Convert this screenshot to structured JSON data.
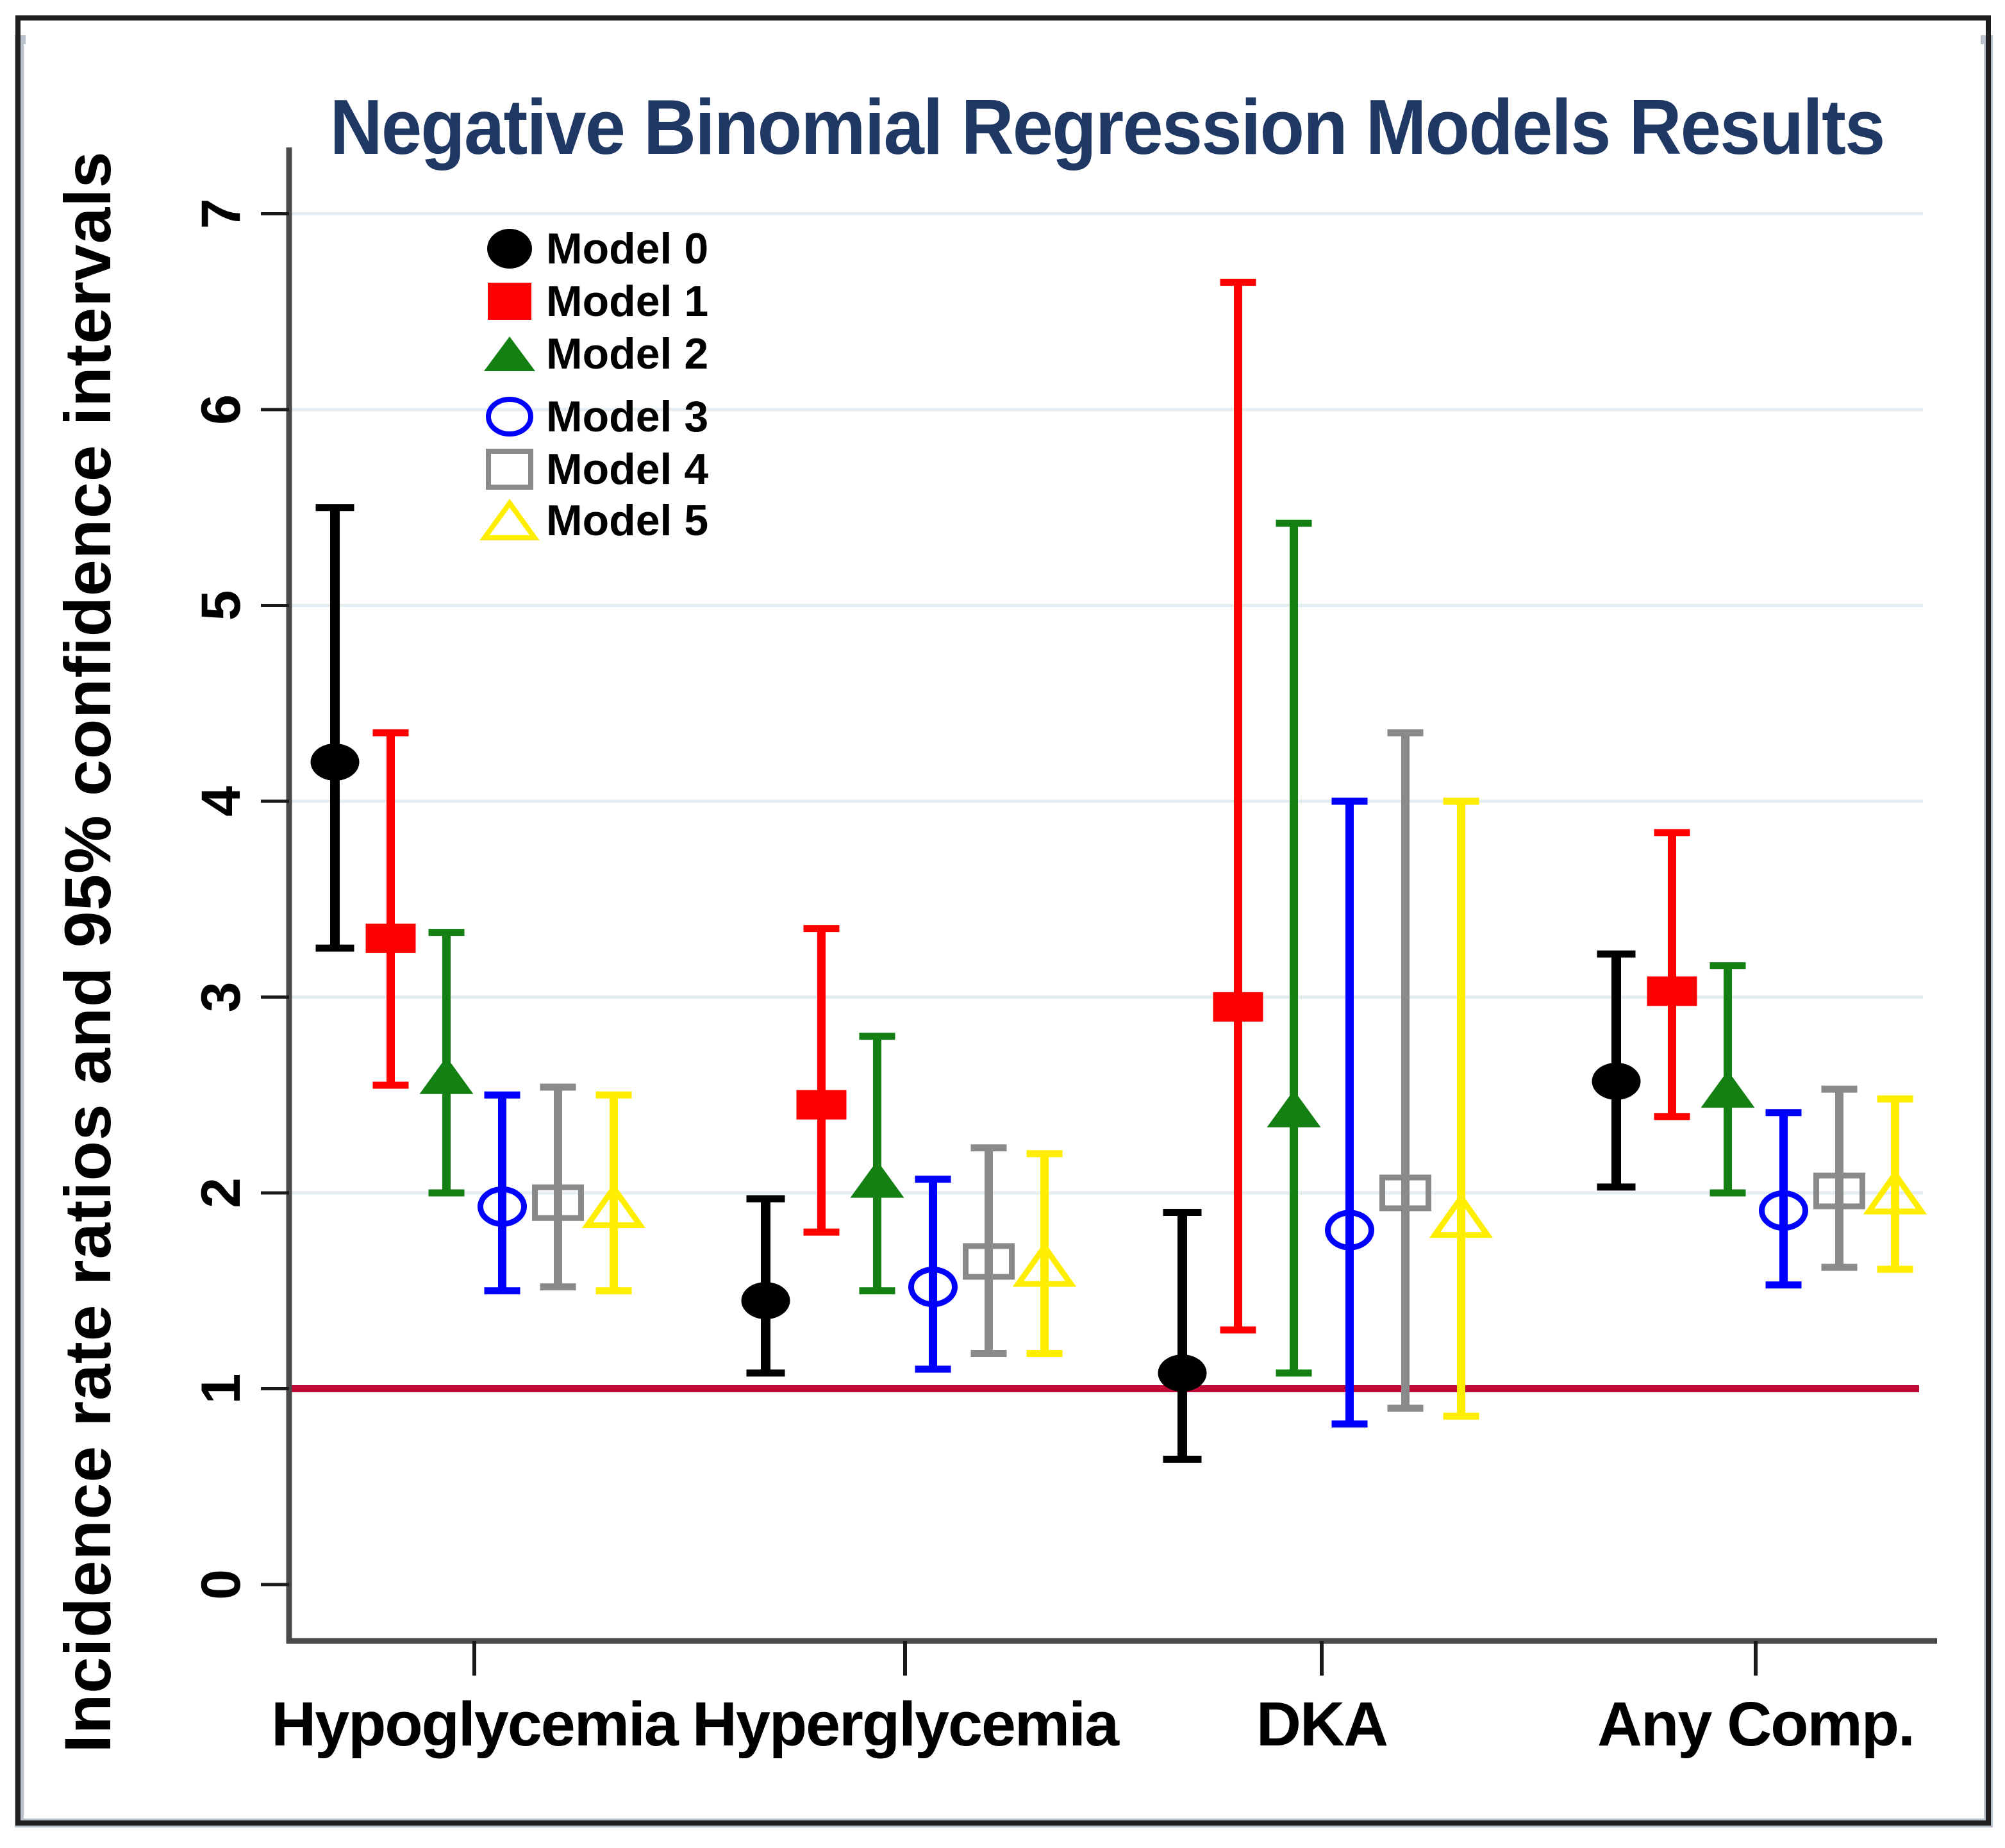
{
  "title": "Negative Binomial Regression Models Results",
  "colors": {
    "title": "#1f3864",
    "axis": "#4a4a4a",
    "tick": "#1a1a1a",
    "text": "#000000",
    "gridline": "#e4eef2",
    "reference_line": "#c00a35",
    "frame": "#1e1e1e",
    "frame_shadow": "#b9c2cc",
    "background": "#ffffff"
  },
  "chart_data": {
    "type": "scatter",
    "subtype": "point-estimates-with-95ci-error-bars",
    "title": "Negative Binomial Regression Models Results",
    "ylabel": "Incidence rate ratios and 95% confidence intervals",
    "xlabel": "",
    "categories": [
      "Hypoglycemia",
      "Hyperglycemia",
      "DKA",
      "Any Comp."
    ],
    "ylim": [
      0,
      7
    ],
    "yticks": [
      0,
      1,
      2,
      3,
      4,
      5,
      6,
      7
    ],
    "grid": true,
    "reference_line_y": 1,
    "legend_position": "top-left-inside",
    "series": [
      {
        "name": "Model 0",
        "marker": "circle",
        "fill": "filled",
        "color": "#000000",
        "irr": [
          4.2,
          1.45,
          1.08,
          2.57
        ],
        "ci_low": [
          3.25,
          1.08,
          0.64,
          2.03
        ],
        "ci_high": [
          5.5,
          1.97,
          1.9,
          3.22
        ]
      },
      {
        "name": "Model 1",
        "marker": "square",
        "fill": "filled",
        "color": "#fe0000",
        "irr": [
          3.3,
          2.45,
          2.95,
          3.03
        ],
        "ci_low": [
          2.55,
          1.8,
          1.3,
          2.39
        ],
        "ci_high": [
          4.35,
          3.35,
          6.65,
          3.84
        ]
      },
      {
        "name": "Model 2",
        "marker": "triangle",
        "fill": "filled",
        "color": "#148014",
        "irr": [
          2.6,
          2.07,
          2.43,
          2.53
        ],
        "ci_low": [
          2.0,
          1.5,
          1.08,
          2.0
        ],
        "ci_high": [
          3.33,
          2.8,
          5.42,
          3.16
        ]
      },
      {
        "name": "Model 3",
        "marker": "circle",
        "fill": "open",
        "color": "#0000fe",
        "irr": [
          1.93,
          1.52,
          1.81,
          1.91
        ],
        "ci_low": [
          1.5,
          1.1,
          0.82,
          1.53
        ],
        "ci_high": [
          2.5,
          2.07,
          4.0,
          2.41
        ]
      },
      {
        "name": "Model 4",
        "marker": "square",
        "fill": "open",
        "color": "#8a8a8a",
        "irr": [
          1.95,
          1.65,
          2.0,
          2.01
        ],
        "ci_low": [
          1.52,
          1.18,
          0.9,
          1.62
        ],
        "ci_high": [
          2.54,
          2.23,
          4.35,
          2.53
        ]
      },
      {
        "name": "Model 5",
        "marker": "triangle",
        "fill": "open",
        "color": "#ffee00",
        "irr": [
          1.93,
          1.63,
          1.88,
          2.0
        ],
        "ci_low": [
          1.5,
          1.18,
          0.86,
          1.61
        ],
        "ci_high": [
          2.5,
          2.2,
          4.0,
          2.48
        ]
      }
    ]
  }
}
